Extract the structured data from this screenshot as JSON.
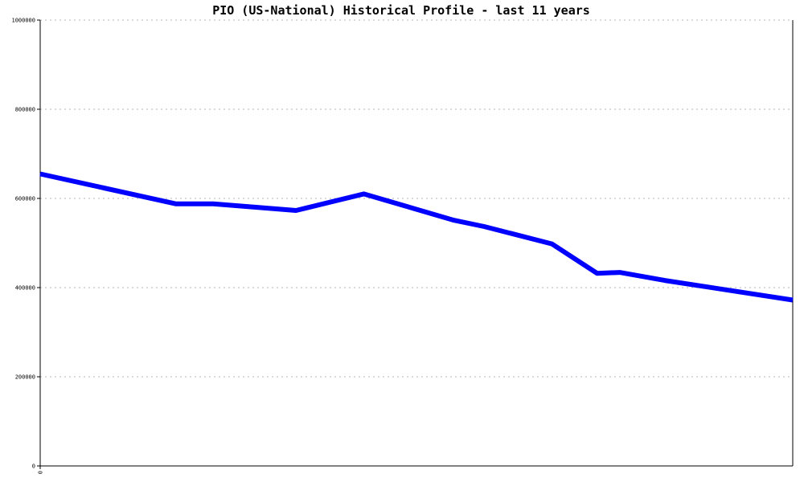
{
  "chart_data": {
    "type": "line",
    "title": "PIO (US-National) Historical Profile - last 11 years",
    "xlabel": "",
    "ylabel": "",
    "x_tick_labels": [
      "0"
    ],
    "y_tick_labels": [
      "0",
      "200000",
      "400000",
      "600000",
      "800000",
      "1000000"
    ],
    "ylim": [
      0,
      1000000
    ],
    "grid": true,
    "series": [
      {
        "color": "#0000ff",
        "x": [
          0,
          0.18,
          0.23,
          0.34,
          0.43,
          0.55,
          0.59,
          0.68,
          0.74,
          0.77,
          0.83,
          1.0
        ],
        "values": [
          655000,
          588000,
          588000,
          573000,
          610000,
          551000,
          537000,
          498000,
          432000,
          434000,
          416000,
          372000
        ]
      }
    ]
  }
}
